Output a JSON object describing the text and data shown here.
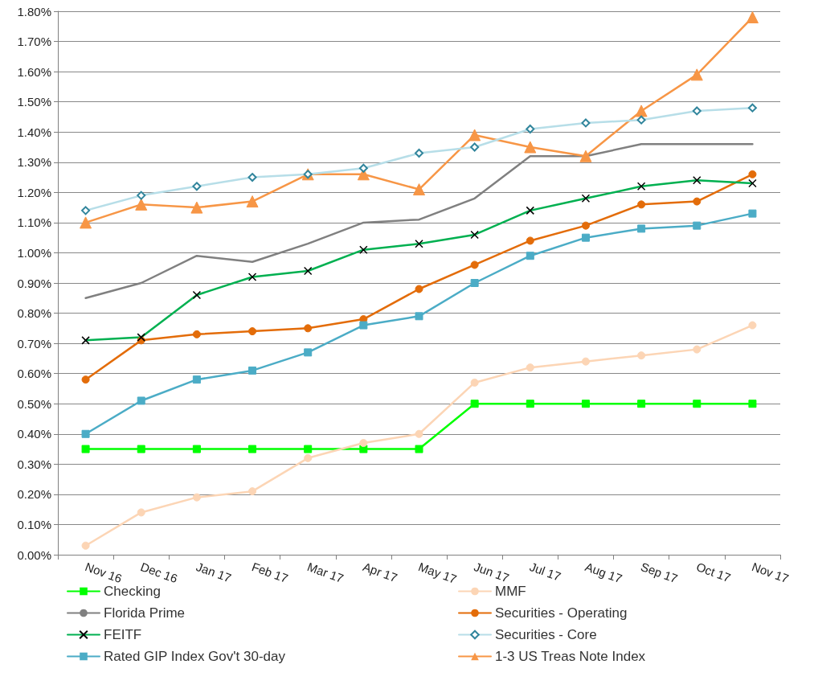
{
  "chart_data": {
    "type": "line",
    "categories": [
      "Nov 16",
      "Dec 16",
      "Jan 17",
      "Feb 17",
      "Mar 17",
      "Apr 17",
      "May 17",
      "Jun 17",
      "Jul 17",
      "Aug 17",
      "Sep 17",
      "Oct 17",
      "Nov 17"
    ],
    "series": [
      {
        "name": "Checking",
        "color": "#00ff00",
        "marker": "square",
        "values": [
          0.35,
          0.35,
          0.35,
          0.35,
          0.35,
          0.35,
          0.35,
          0.5,
          0.5,
          0.5,
          0.5,
          0.5,
          0.5
        ]
      },
      {
        "name": "MMF",
        "color": "#fcd5b5",
        "marker": "circle",
        "values": [
          0.03,
          0.14,
          0.19,
          0.21,
          0.32,
          0.37,
          0.4,
          0.57,
          0.62,
          0.64,
          0.66,
          0.68,
          0.76
        ]
      },
      {
        "name": "Florida Prime",
        "color": "#808080",
        "marker": "none",
        "values": [
          0.85,
          0.9,
          0.99,
          0.97,
          1.03,
          1.1,
          1.11,
          1.18,
          1.32,
          1.32,
          1.36,
          1.36,
          1.36
        ]
      },
      {
        "name": "Securities - Operating",
        "color": "#e36c09",
        "marker": "circle",
        "values": [
          0.58,
          0.71,
          0.73,
          0.74,
          0.75,
          0.78,
          0.88,
          0.96,
          1.04,
          1.09,
          1.16,
          1.17,
          1.26
        ]
      },
      {
        "name": "FEITF",
        "color": "#00b050",
        "marker": "cross",
        "values": [
          0.71,
          0.72,
          0.86,
          0.92,
          0.94,
          1.01,
          1.03,
          1.06,
          1.14,
          1.18,
          1.22,
          1.24,
          1.23
        ]
      },
      {
        "name": "Securities - Core",
        "color": "#b7dee8",
        "marker": "diamond",
        "values": [
          1.14,
          1.19,
          1.22,
          1.25,
          1.26,
          1.28,
          1.33,
          1.35,
          1.41,
          1.43,
          1.44,
          1.47,
          1.48
        ]
      },
      {
        "name": "Rated GIP Index Gov't 30-day",
        "color": "#4bacc6",
        "marker": "square",
        "values": [
          0.4,
          0.51,
          0.58,
          0.61,
          0.67,
          0.76,
          0.79,
          0.9,
          0.99,
          1.05,
          1.08,
          1.09,
          1.13
        ]
      },
      {
        "name": "1-3 US Treas Note Index",
        "color": "#f79646",
        "marker": "triangle",
        "values": [
          1.1,
          1.16,
          1.15,
          1.17,
          1.26,
          1.26,
          1.21,
          1.39,
          1.35,
          1.32,
          1.47,
          1.59,
          1.78
        ]
      }
    ],
    "ylim": [
      0,
      1.8
    ],
    "yticks": [
      {
        "value": 0,
        "label": "0.00%"
      },
      {
        "value": 0.1,
        "label": "0.10%"
      },
      {
        "value": 0.2,
        "label": "0.20%"
      },
      {
        "value": 0.3,
        "label": "0.30%"
      },
      {
        "value": 0.4,
        "label": "0.40%"
      },
      {
        "value": 0.5,
        "label": "0.50%"
      },
      {
        "value": 0.6,
        "label": "0.60%"
      },
      {
        "value": 0.7,
        "label": "0.70%"
      },
      {
        "value": 0.8,
        "label": "0.80%"
      },
      {
        "value": 0.9,
        "label": "0.90%"
      },
      {
        "value": 1.0,
        "label": "1.00%"
      },
      {
        "value": 1.1,
        "label": "1.10%"
      },
      {
        "value": 1.2,
        "label": "1.20%"
      },
      {
        "value": 1.3,
        "label": "1.30%"
      },
      {
        "value": 1.4,
        "label": "1.40%"
      },
      {
        "value": 1.5,
        "label": "1.50%"
      },
      {
        "value": 1.6,
        "label": "1.60%"
      },
      {
        "value": 1.7,
        "label": "1.70%"
      },
      {
        "value": 1.8,
        "label": "1.80%"
      }
    ],
    "grid": "y",
    "legend": "bottom"
  }
}
